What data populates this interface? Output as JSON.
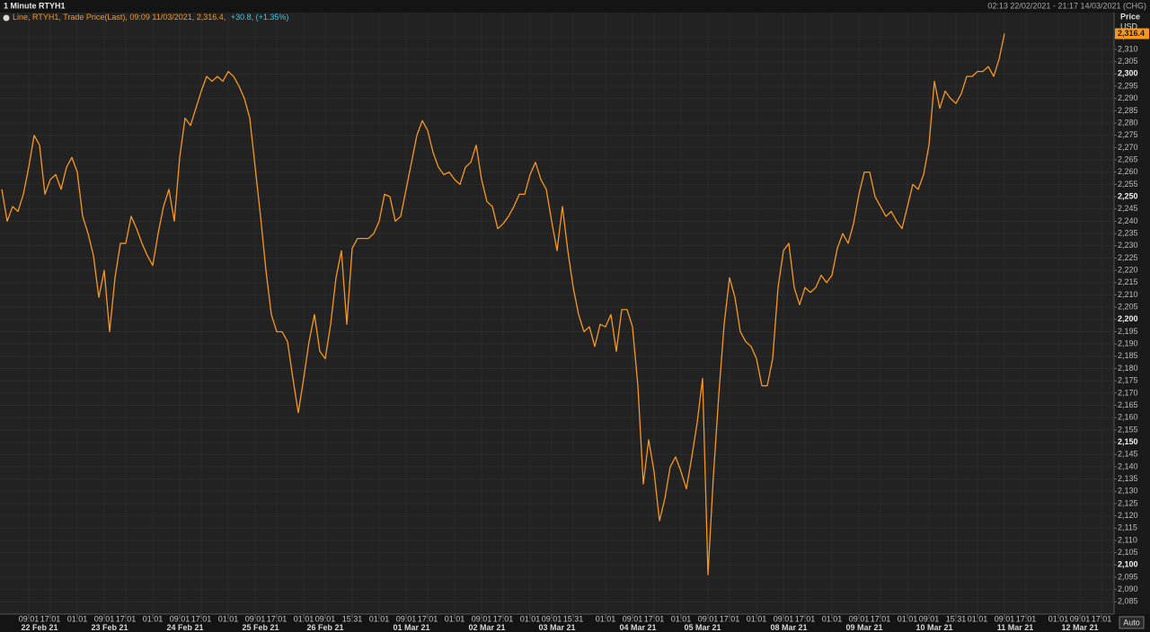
{
  "chart_data": {
    "type": "line",
    "title": "1 Minute RTYH1",
    "range_label": "02:13 22/02/2021 - 21:17 14/03/2021 (CHG)",
    "legend": {
      "main": "Line, RTYH1, Trade Price(Last), 09:09 11/03/2021, 2,316.4,",
      "change": "+30.8, (+1.35%)"
    },
    "axis_title": "Price",
    "axis_unit": "USD",
    "auto_label": "Auto",
    "color": "#f7981d",
    "last_value_label": "2,316.4",
    "ylim": [
      2080,
      2325
    ],
    "yticks": [
      {
        "value": 2085,
        "label": "2,085"
      },
      {
        "value": 2090,
        "label": "2,090"
      },
      {
        "value": 2095,
        "label": "2,095"
      },
      {
        "value": 2100,
        "label": "2,100"
      },
      {
        "value": 2105,
        "label": "2,105"
      },
      {
        "value": 2110,
        "label": "2,110"
      },
      {
        "value": 2115,
        "label": "2,115"
      },
      {
        "value": 2120,
        "label": "2,120"
      },
      {
        "value": 2125,
        "label": "2,125"
      },
      {
        "value": 2130,
        "label": "2,130"
      },
      {
        "value": 2135,
        "label": "2,135"
      },
      {
        "value": 2140,
        "label": "2,140"
      },
      {
        "value": 2145,
        "label": "2,145"
      },
      {
        "value": 2150,
        "label": "2,150"
      },
      {
        "value": 2155,
        "label": "2,155"
      },
      {
        "value": 2160,
        "label": "2,160"
      },
      {
        "value": 2165,
        "label": "2,165"
      },
      {
        "value": 2170,
        "label": "2,170"
      },
      {
        "value": 2175,
        "label": "2,175"
      },
      {
        "value": 2180,
        "label": "2,180"
      },
      {
        "value": 2185,
        "label": "2,185"
      },
      {
        "value": 2190,
        "label": "2,190"
      },
      {
        "value": 2195,
        "label": "2,195"
      },
      {
        "value": 2200,
        "label": "2,200"
      },
      {
        "value": 2205,
        "label": "2,205"
      },
      {
        "value": 2210,
        "label": "2,210"
      },
      {
        "value": 2215,
        "label": "2,215"
      },
      {
        "value": 2220,
        "label": "2,220"
      },
      {
        "value": 2225,
        "label": "2,225"
      },
      {
        "value": 2230,
        "label": "2,230"
      },
      {
        "value": 2235,
        "label": "2,235"
      },
      {
        "value": 2240,
        "label": "2,240"
      },
      {
        "value": 2245,
        "label": "2,245"
      },
      {
        "value": 2250,
        "label": "2,250"
      },
      {
        "value": 2255,
        "label": "2,255"
      },
      {
        "value": 2260,
        "label": "2,260"
      },
      {
        "value": 2265,
        "label": "2,265"
      },
      {
        "value": 2270,
        "label": "2,270"
      },
      {
        "value": 2275,
        "label": "2,275"
      },
      {
        "value": 2280,
        "label": "2,280"
      },
      {
        "value": 2285,
        "label": "2,285"
      },
      {
        "value": 2290,
        "label": "2,290"
      },
      {
        "value": 2295,
        "label": "2,295"
      },
      {
        "value": 2300,
        "label": "2,300"
      },
      {
        "value": 2305,
        "label": "2,305"
      },
      {
        "value": 2310,
        "label": "2,310"
      },
      {
        "value": 2315,
        "label": "2,315"
      }
    ],
    "grid": true,
    "categories": [
      null,
      null,
      null,
      null,
      null,
      "09:01",
      null,
      null,
      null,
      "17:01",
      null,
      null,
      null,
      null,
      "01:01",
      null,
      null,
      null,
      null,
      "09:01",
      null,
      null,
      null,
      "17:01",
      null,
      null,
      null,
      null,
      "01:01",
      null,
      null,
      null,
      null,
      "09:01",
      null,
      null,
      null,
      "17:01",
      null,
      null,
      null,
      null,
      "01:01",
      null,
      null,
      null,
      null,
      "09:01",
      null,
      null,
      null,
      "17:01",
      null,
      null,
      null,
      null,
      "01:01",
      null,
      null,
      null,
      "09:01",
      null,
      null,
      null,
      null,
      "15:31",
      null,
      null,
      null,
      null,
      "01:01",
      null,
      null,
      null,
      null,
      "09:01",
      null,
      null,
      null,
      "17:01",
      null,
      null,
      null,
      null,
      "01:01",
      null,
      null,
      null,
      null,
      "09:01",
      null,
      null,
      null,
      "17:01",
      null,
      null,
      null,
      null,
      "01:01",
      null,
      null,
      null,
      "09:01",
      null,
      null,
      null,
      "15:31",
      null,
      null,
      null,
      null,
      null,
      "01:01",
      null,
      null,
      null,
      null,
      "09:01",
      null,
      null,
      null,
      "17:01",
      null,
      null,
      null,
      null,
      "01:01",
      null,
      null,
      null,
      null,
      "09:01",
      null,
      null,
      null,
      "17:01",
      null,
      null,
      null,
      null,
      "01:01",
      null,
      null,
      null,
      null,
      "09:01",
      null,
      null,
      null,
      "17:01",
      null,
      null,
      null,
      null,
      "01:01",
      null,
      null,
      null,
      null,
      "09:01",
      null,
      null,
      null,
      "17:01",
      null,
      null,
      null,
      null,
      "01:01",
      null,
      null,
      null,
      "09:01",
      null,
      null,
      null,
      null,
      "15:31",
      null,
      null,
      null,
      "01:01",
      null,
      null,
      null,
      null,
      "09:01",
      null,
      null,
      null,
      "17:01",
      null,
      null,
      null,
      null,
      null,
      "01:01",
      null,
      null,
      null,
      "09:01",
      null,
      null,
      null,
      "17:01"
    ],
    "dates": [
      null,
      null,
      null,
      null,
      null,
      null,
      null,
      "22 Feb 21",
      null,
      null,
      null,
      null,
      null,
      null,
      null,
      null,
      null,
      null,
      null,
      null,
      "23 Feb 21",
      null,
      null,
      null,
      null,
      null,
      null,
      null,
      null,
      null,
      null,
      null,
      null,
      null,
      "24 Feb 21",
      null,
      null,
      null,
      null,
      null,
      null,
      null,
      null,
      null,
      null,
      null,
      null,
      null,
      "25 Feb 21",
      null,
      null,
      null,
      null,
      null,
      null,
      null,
      null,
      null,
      null,
      null,
      "26 Feb 21",
      null,
      null,
      null,
      null,
      null,
      null,
      null,
      null,
      null,
      null,
      null,
      null,
      null,
      null,
      null,
      "01 Mar 21",
      null,
      null,
      null,
      null,
      null,
      null,
      null,
      null,
      null,
      null,
      null,
      null,
      null,
      "02 Mar 21",
      null,
      null,
      null,
      null,
      null,
      null,
      null,
      null,
      null,
      null,
      null,
      null,
      "03 Mar 21",
      null,
      null,
      null,
      null,
      null,
      null,
      null,
      null,
      null,
      null,
      null,
      null,
      null,
      null,
      "04 Mar 21",
      null,
      null,
      null,
      null,
      null,
      null,
      null,
      null,
      null,
      null,
      null,
      "05 Mar 21",
      null,
      null,
      null,
      null,
      null,
      null,
      null,
      null,
      null,
      null,
      null,
      null,
      null,
      null,
      null,
      "08 Mar 21",
      null,
      null,
      null,
      null,
      null,
      null,
      null,
      null,
      null,
      null,
      null,
      null,
      null,
      "09 Mar 21",
      null,
      null,
      null,
      null,
      null,
      null,
      null,
      null,
      null,
      null,
      null,
      null,
      "10 Mar 21",
      null,
      null,
      null,
      null,
      null,
      null,
      null,
      null,
      null,
      null,
      null,
      null,
      null,
      null,
      "11 Mar 21",
      null,
      null,
      null,
      null,
      null,
      null,
      null,
      null,
      null,
      null,
      null,
      "12 Mar 21",
      null,
      null,
      null,
      null
    ],
    "values": [
      2253,
      2240,
      2246,
      2244,
      2251,
      2262,
      2275,
      2271,
      2251,
      2257,
      2259,
      2253,
      2262,
      2266,
      2260,
      2242,
      2235,
      2226,
      2209,
      2220,
      2195,
      2217,
      2231,
      2231,
      2242,
      2237,
      2231,
      2226,
      2222,
      2235,
      2246,
      2253,
      2240,
      2266,
      2282,
      2279,
      2286,
      2293,
      2299,
      2297,
      2299,
      2297,
      2301,
      2299,
      2295,
      2290,
      2282,
      2262,
      2242,
      2220,
      2202,
      2195,
      2195,
      2191,
      2176,
      2162,
      2176,
      2191,
      2202,
      2187,
      2184,
      2198,
      2217,
      2228,
      2198,
      2229,
      2233,
      2233,
      2233,
      2235,
      2240,
      2251,
      2250,
      2240,
      2242,
      2253,
      2264,
      2275,
      2281,
      2277,
      2268,
      2262,
      2259,
      2260,
      2257,
      2255,
      2262,
      2264,
      2271,
      2257,
      2248,
      2246,
      2237,
      2239,
      2242,
      2246,
      2251,
      2251,
      2259,
      2264,
      2257,
      2253,
      2240,
      2228,
      2246,
      2228,
      2213,
      2202,
      2195,
      2197,
      2189,
      2198,
      2197,
      2202,
      2187,
      2204,
      2204,
      2197,
      2173,
      2133,
      2151,
      2138,
      2118,
      2127,
      2140,
      2144,
      2138,
      2131,
      2144,
      2158,
      2176,
      2096,
      2136,
      2169,
      2198,
      2217,
      2209,
      2195,
      2191,
      2189,
      2184,
      2173,
      2173,
      2184,
      2213,
      2228,
      2231,
      2213,
      2206,
      2213,
      2211,
      2213,
      2218,
      2215,
      2218,
      2229,
      2235,
      2231,
      2239,
      2251,
      2260,
      2260,
      2250,
      2246,
      2242,
      2244,
      2240,
      2237,
      2246,
      2255,
      2253,
      2259,
      2271,
      2297,
      2286,
      2293,
      2290,
      2288,
      2292,
      2299,
      2299,
      2301,
      2301,
      2303,
      2299,
      2306,
      2316.4,
      null,
      null,
      null,
      null,
      null,
      null,
      null,
      null,
      null,
      null,
      null,
      null,
      null,
      null,
      null,
      null,
      null,
      null
    ]
  }
}
